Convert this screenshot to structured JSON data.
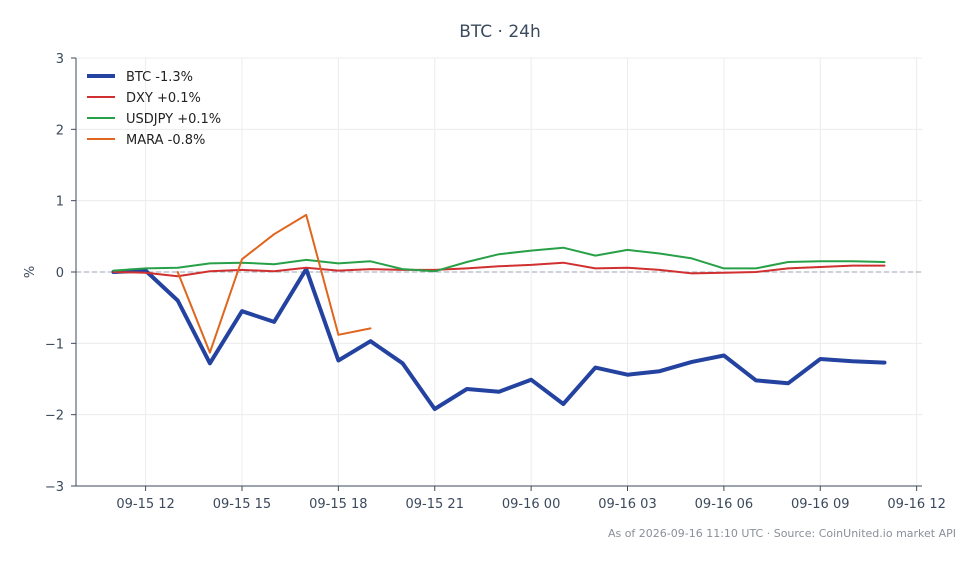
{
  "chart_data": {
    "type": "line",
    "title": "BTC · 24h",
    "xlabel": "",
    "ylabel": "%",
    "footer": "As of 2026-09-16 11:10 UTC · Source: CoinUnited.io market API",
    "xlim": [
      "2026-09-15 09:50",
      "2026-09-16 12:10"
    ],
    "ylim": [
      -3,
      3
    ],
    "x_ticks": [
      {
        "label": "09-15 12",
        "time": "2026-09-15 12:00"
      },
      {
        "label": "09-15 15",
        "time": "2026-09-15 15:00"
      },
      {
        "label": "09-15 18",
        "time": "2026-09-15 18:00"
      },
      {
        "label": "09-15 21",
        "time": "2026-09-15 21:00"
      },
      {
        "label": "09-16 00",
        "time": "2026-09-16 00:00"
      },
      {
        "label": "09-16 03",
        "time": "2026-09-16 03:00"
      },
      {
        "label": "09-16 06",
        "time": "2026-09-16 06:00"
      },
      {
        "label": "09-16 09",
        "time": "2026-09-16 09:00"
      },
      {
        "label": "09-16 12",
        "time": "2026-09-16 12:00"
      }
    ],
    "y_ticks": [
      {
        "label": "3",
        "value": 3
      },
      {
        "label": "2",
        "value": 2
      },
      {
        "label": "1",
        "value": 1
      },
      {
        "label": "0",
        "value": 0
      },
      {
        "label": "−1",
        "value": -1
      },
      {
        "label": "−2",
        "value": -2
      },
      {
        "label": "−3",
        "value": -3
      }
    ],
    "grid": true,
    "zero_line": true,
    "legend_position": "top-left",
    "x": [
      "2026-09-15 11:00",
      "2026-09-15 12:00",
      "2026-09-15 13:00",
      "2026-09-15 14:00",
      "2026-09-15 15:00",
      "2026-09-15 16:00",
      "2026-09-15 17:00",
      "2026-09-15 18:00",
      "2026-09-15 19:00",
      "2026-09-15 20:00",
      "2026-09-15 21:00",
      "2026-09-15 22:00",
      "2026-09-15 23:00",
      "2026-09-16 00:00",
      "2026-09-16 01:00",
      "2026-09-16 02:00",
      "2026-09-16 03:00",
      "2026-09-16 04:00",
      "2026-09-16 05:00",
      "2026-09-16 06:00",
      "2026-09-16 07:00",
      "2026-09-16 08:00",
      "2026-09-16 09:00",
      "2026-09-16 10:00",
      "2026-09-16 11:00"
    ],
    "series": [
      {
        "name": "BTC -1.3%",
        "color": "#2442a0",
        "width": 4,
        "values": [
          0.0,
          0.02,
          -0.4,
          -1.28,
          -0.55,
          -0.7,
          0.04,
          -1.24,
          -0.97,
          -1.28,
          -1.92,
          -1.64,
          -1.68,
          -1.51,
          -1.85,
          -1.34,
          -1.44,
          -1.39,
          -1.26,
          -1.17,
          -1.52,
          -1.56,
          -1.22,
          -1.25,
          -1.27
        ]
      },
      {
        "name": "DXY +0.1%",
        "color": "#d03030",
        "width": 2,
        "values": [
          0.0,
          -0.01,
          -0.06,
          0.01,
          0.03,
          0.01,
          0.06,
          0.02,
          0.04,
          0.03,
          0.03,
          0.05,
          0.08,
          0.1,
          0.13,
          0.05,
          0.06,
          0.03,
          -0.02,
          -0.01,
          0.0,
          0.05,
          0.07,
          0.09,
          0.09
        ]
      },
      {
        "name": "USDJPY +0.1%",
        "color": "#28a048",
        "width": 2,
        "values": [
          0.02,
          0.05,
          0.06,
          0.12,
          0.13,
          0.11,
          0.17,
          0.12,
          0.15,
          0.04,
          0.01,
          0.14,
          0.25,
          0.3,
          0.34,
          0.23,
          0.31,
          0.26,
          0.19,
          0.05,
          0.05,
          0.14,
          0.15,
          0.15,
          0.14
        ]
      },
      {
        "name": "MARA -0.8%",
        "color": "#e0651d",
        "width": 2,
        "values": [
          null,
          null,
          0.0,
          -1.13,
          0.18,
          0.53,
          0.8,
          -0.88,
          -0.79,
          null,
          null,
          null,
          null,
          null,
          null,
          null,
          null,
          null,
          null,
          null,
          null,
          null,
          null,
          null,
          null
        ]
      }
    ]
  }
}
